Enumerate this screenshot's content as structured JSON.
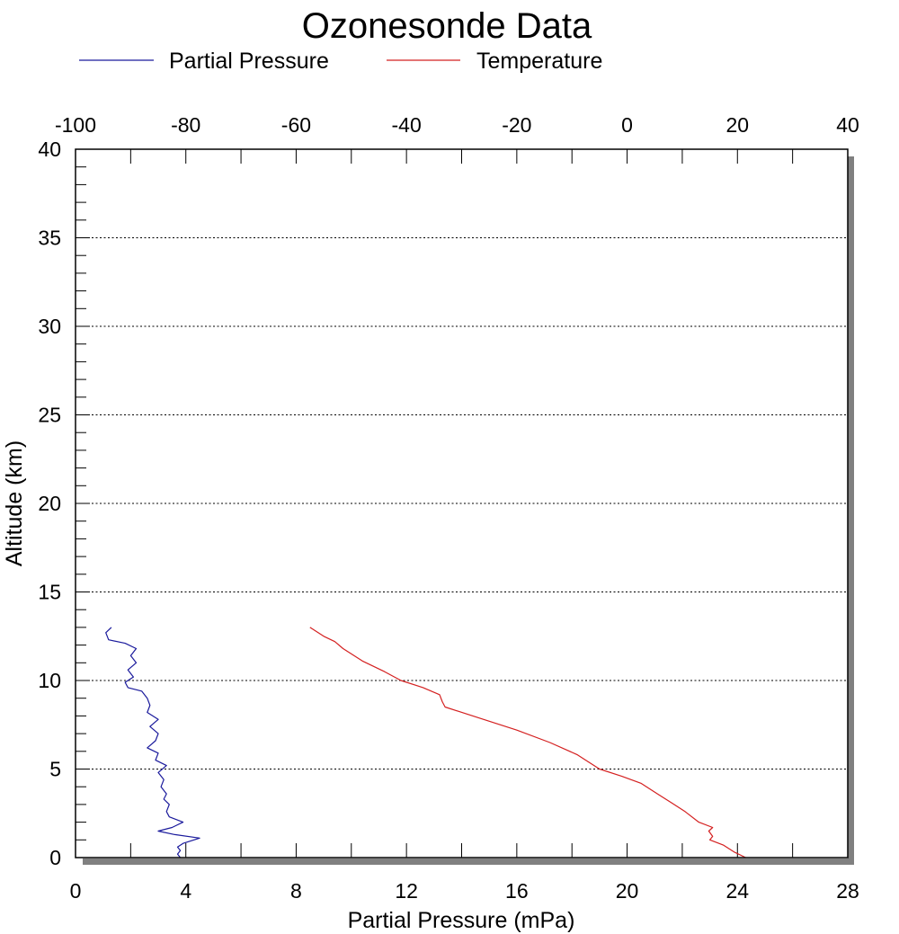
{
  "chart_data": {
    "type": "line",
    "title": "Ozonesonde Data",
    "legend": {
      "placement": "top",
      "entries": [
        {
          "name": "Partial Pressure",
          "color": "#1a1a9c"
        },
        {
          "name": "Temperature",
          "color": "#d42020"
        }
      ]
    },
    "xlabel_bottom": "Partial Pressure (mPa)",
    "xlabel_top": "",
    "ylabel": "Altitude (km)",
    "xlim_bottom": [
      0,
      28
    ],
    "xlim_top": [
      -100,
      40
    ],
    "ylim": [
      0,
      40
    ],
    "xticks_bottom": [
      "0",
      "4",
      "8",
      "12",
      "16",
      "20",
      "24",
      "28"
    ],
    "xticks_top": [
      "-100",
      "-80",
      "-60",
      "-40",
      "-20",
      "0",
      "20",
      "40"
    ],
    "yticks": [
      "0",
      "5",
      "10",
      "15",
      "20",
      "25",
      "30",
      "35",
      "40"
    ],
    "grid": "dotted horizontal at 5 km intervals",
    "series": [
      {
        "name": "Partial Pressure",
        "axis": "bottom",
        "color": "#1a1a9c",
        "points": [
          [
            3.8,
            0.0
          ],
          [
            3.7,
            0.2
          ],
          [
            3.8,
            0.4
          ],
          [
            3.7,
            0.6
          ],
          [
            3.9,
            0.8
          ],
          [
            4.5,
            1.1
          ],
          [
            3.6,
            1.3
          ],
          [
            3.0,
            1.5
          ],
          [
            3.5,
            1.7
          ],
          [
            3.9,
            2.0
          ],
          [
            3.4,
            2.3
          ],
          [
            3.3,
            2.6
          ],
          [
            3.4,
            3.0
          ],
          [
            3.2,
            3.3
          ],
          [
            3.3,
            3.6
          ],
          [
            3.1,
            4.0
          ],
          [
            3.2,
            4.4
          ],
          [
            3.0,
            4.8
          ],
          [
            3.3,
            5.2
          ],
          [
            2.9,
            5.5
          ],
          [
            3.0,
            5.9
          ],
          [
            2.6,
            6.2
          ],
          [
            2.9,
            6.6
          ],
          [
            3.0,
            7.0
          ],
          [
            2.7,
            7.4
          ],
          [
            3.0,
            7.8
          ],
          [
            2.6,
            8.2
          ],
          [
            2.7,
            8.6
          ],
          [
            2.6,
            9.0
          ],
          [
            2.4,
            9.4
          ],
          [
            1.9,
            9.6
          ],
          [
            1.8,
            9.9
          ],
          [
            2.1,
            10.2
          ],
          [
            1.9,
            10.6
          ],
          [
            2.2,
            11.0
          ],
          [
            2.0,
            11.4
          ],
          [
            2.2,
            11.8
          ],
          [
            1.8,
            12.1
          ],
          [
            1.2,
            12.3
          ],
          [
            1.1,
            12.7
          ],
          [
            1.3,
            13.0
          ]
        ]
      },
      {
        "name": "Temperature",
        "axis": "top",
        "color": "#d42020",
        "points": [
          [
            21.5,
            0.0
          ],
          [
            19.5,
            0.3
          ],
          [
            17.5,
            0.7
          ],
          [
            15.0,
            1.0
          ],
          [
            15.5,
            1.2
          ],
          [
            14.8,
            1.5
          ],
          [
            15.5,
            1.7
          ],
          [
            13.0,
            2.0
          ],
          [
            10.5,
            2.6
          ],
          [
            8.0,
            3.1
          ],
          [
            5.5,
            3.6
          ],
          [
            2.5,
            4.2
          ],
          [
            -1.0,
            4.6
          ],
          [
            -5.0,
            5.0
          ],
          [
            -7.0,
            5.4
          ],
          [
            -9.0,
            5.8
          ],
          [
            -14.0,
            6.5
          ],
          [
            -20.0,
            7.2
          ],
          [
            -26.0,
            7.8
          ],
          [
            -33.0,
            8.5
          ],
          [
            -33.5,
            8.8
          ],
          [
            -34.0,
            9.2
          ],
          [
            -37.0,
            9.6
          ],
          [
            -41.0,
            10.0
          ],
          [
            -44.0,
            10.5
          ],
          [
            -48.0,
            11.1
          ],
          [
            -51.5,
            11.8
          ],
          [
            -53.0,
            12.2
          ],
          [
            -55.0,
            12.5
          ],
          [
            -57.5,
            13.0
          ]
        ]
      }
    ]
  }
}
